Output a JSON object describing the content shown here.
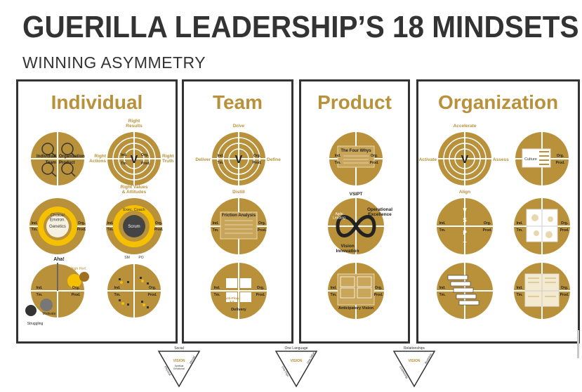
{
  "header": {
    "title": "GUERILLA LEADERSHIP’S 18 MINDSETS",
    "subtitle": "WINNING ASYMMETRY"
  },
  "colors": {
    "gold": "#b8913a",
    "dark": "#333333",
    "yellow": "#f5c000"
  },
  "quadrant_labels": {
    "ind": "Ind.",
    "org": "Org.",
    "tm": "Tm.",
    "prod": "Prod."
  },
  "panels": {
    "individual": {
      "title": "Individual",
      "c1": {
        "ind": "Individual",
        "org": "Organization",
        "tm": "Team",
        "prod": "Product"
      },
      "c2": {
        "top": "Right\nResults",
        "left": "Right\nActions",
        "right": "Right\nTruth",
        "center": "V"
      },
      "c3": {
        "choice": "Choice/\nEnviron.",
        "genetics": "Genetics"
      },
      "c4": {
        "top": "Right Values\n& Attitudes",
        "exec": "Exec. Coach",
        "coach": "Coach",
        "scrum": "Scrum",
        "sm": "SM",
        "po": "PO"
      },
      "c5": {
        "aha": "Aha!",
        "high": "High Perf.",
        "motivate": "Motivate",
        "struggling": "Struggling"
      }
    },
    "team": {
      "title": "Team",
      "c1": {
        "top": "Drive",
        "left": "Deliver",
        "right": "Define",
        "bottom": "Distill",
        "center": "V"
      },
      "c2": {
        "title": "Friction Analysis"
      },
      "c3": {
        "bottom": "Delivery",
        "center": "Anti-Flow\n2.0"
      }
    },
    "product": {
      "title": "Product",
      "c1": {
        "title": "The Four Whys",
        "bottom": "VSIPT"
      },
      "c2": {
        "tr": "Operational\nExcellence",
        "bl": "Vision\nInnovation",
        "tl": "Agile\nLeading"
      },
      "c3": {
        "title": "Anticipatory Vision"
      }
    },
    "organization": {
      "title": "Organization",
      "c1": {
        "top": "Accelerate",
        "left": "Activate",
        "right": "Assess",
        "bottom": "Align",
        "center": "V"
      },
      "c2": {
        "center": "Culture"
      },
      "c3": {
        "letters": [
          "V",
          "S",
          "P",
          "T"
        ]
      }
    }
  },
  "triangles": [
    {
      "top": "Social",
      "center": "VISION",
      "sub": "Spiritual\nEmotional",
      "left": "Physical",
      "right": "Mental"
    },
    {
      "top": "One Language",
      "center": "VISION",
      "sub": "",
      "left": "One Plan",
      "right": "One Value"
    },
    {
      "top": "Relationships",
      "center": "VISION",
      "sub": "",
      "left": "Leadership",
      "right": "Business"
    }
  ]
}
